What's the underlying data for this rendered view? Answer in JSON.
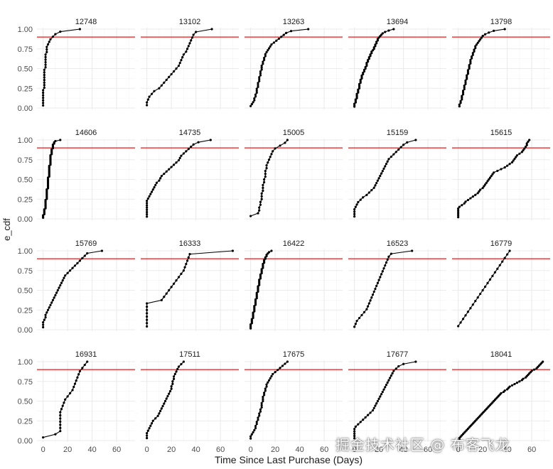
{
  "chart_data": {
    "type": "line",
    "subtype": "faceted-ecdf",
    "xlabel": "Time Since Last Purchase (Days)",
    "ylabel": "e_cdf",
    "xlim": [
      -5,
      75
    ],
    "ylim": [
      0,
      1.0
    ],
    "x_ticks": [
      0,
      20,
      40,
      60
    ],
    "y_ticks": [
      0.0,
      0.25,
      0.5,
      0.75,
      1.0
    ],
    "y_tick_labels": [
      "0.00",
      "0.25",
      "0.50",
      "0.75",
      "1.00"
    ],
    "x_tick_labels": [
      "0",
      "20",
      "40",
      "60"
    ],
    "grid": true,
    "reference_line": {
      "y": 0.9,
      "color": "#e31a1c"
    },
    "line_color": "#000000",
    "panel_background": "#ffffff",
    "grid_color": "#ebebeb",
    "facets": [
      {
        "id": "12748",
        "x": [
          0,
          0,
          0,
          0,
          0,
          0,
          0,
          1,
          1,
          1,
          1,
          1,
          1,
          1,
          1,
          2,
          2,
          2,
          2,
          2,
          2,
          3,
          3,
          3,
          4,
          5,
          6,
          8,
          10,
          14,
          30
        ]
      },
      {
        "id": "13102",
        "x": [
          0,
          0,
          1,
          2,
          4,
          6,
          10,
          12,
          14,
          16,
          18,
          20,
          22,
          24,
          26,
          27,
          28,
          29,
          30,
          32,
          33,
          34,
          35,
          36,
          37,
          38,
          40,
          53
        ]
      },
      {
        "id": "13263",
        "x": [
          0,
          1,
          2,
          3,
          3,
          4,
          4,
          5,
          5,
          5,
          6,
          6,
          6,
          7,
          7,
          7,
          8,
          8,
          8,
          9,
          9,
          9,
          10,
          10,
          11,
          11,
          12,
          12,
          13,
          14,
          15,
          16,
          17,
          19,
          21,
          23,
          25,
          27,
          29,
          33,
          47
        ]
      },
      {
        "id": "13694",
        "x": [
          0,
          0,
          0,
          1,
          1,
          1,
          2,
          2,
          2,
          2,
          3,
          3,
          3,
          4,
          4,
          4,
          4,
          5,
          5,
          5,
          6,
          6,
          6,
          7,
          7,
          8,
          8,
          9,
          9,
          10,
          10,
          10,
          11,
          11,
          12,
          12,
          13,
          13,
          14,
          14,
          15,
          16,
          16,
          17,
          17,
          18,
          18,
          19,
          19,
          20,
          21,
          22,
          23,
          25,
          28,
          32
        ]
      },
      {
        "id": "13798",
        "x": [
          1,
          1,
          2,
          2,
          3,
          3,
          3,
          4,
          4,
          4,
          5,
          5,
          5,
          6,
          6,
          6,
          7,
          7,
          7,
          8,
          8,
          8,
          9,
          9,
          9,
          10,
          10,
          10,
          11,
          11,
          12,
          12,
          13,
          13,
          14,
          14,
          15,
          16,
          17,
          18,
          19,
          20,
          22,
          25,
          29,
          38
        ]
      },
      {
        "id": "14606",
        "x": [
          0,
          0,
          0,
          1,
          1,
          1,
          1,
          1,
          2,
          2,
          2,
          2,
          2,
          2,
          2,
          2,
          3,
          3,
          3,
          3,
          3,
          3,
          3,
          3,
          3,
          4,
          4,
          4,
          4,
          4,
          4,
          4,
          4,
          4,
          4,
          5,
          5,
          5,
          5,
          5,
          5,
          5,
          5,
          5,
          5,
          6,
          6,
          6,
          6,
          6,
          6,
          6,
          6,
          6,
          7,
          7,
          7,
          7,
          7,
          8,
          8,
          8,
          8,
          9,
          9,
          10,
          14
        ]
      },
      {
        "id": "14735",
        "x": [
          0,
          0,
          0,
          0,
          0,
          0,
          0,
          0,
          1,
          2,
          3,
          4,
          5,
          6,
          7,
          8,
          10,
          11,
          12,
          14,
          16,
          18,
          20,
          22,
          24,
          26,
          27,
          28,
          30,
          32,
          34,
          36,
          38,
          42,
          52
        ]
      },
      {
        "id": "15005",
        "x": [
          0,
          6,
          7,
          7,
          8,
          8,
          9,
          9,
          9,
          10,
          10,
          10,
          11,
          11,
          12,
          12,
          12,
          13,
          13,
          14,
          15,
          16,
          17,
          18,
          20,
          24,
          28,
          30
        ]
      },
      {
        "id": "15159",
        "x": [
          0,
          0,
          0,
          0,
          1,
          2,
          3,
          5,
          7,
          10,
          12,
          14,
          16,
          17,
          18,
          19,
          20,
          21,
          22,
          23,
          24,
          25,
          26,
          27,
          28,
          30,
          32,
          34,
          36,
          38,
          40,
          43,
          50
        ]
      },
      {
        "id": "15615",
        "x": [
          0,
          0,
          0,
          0,
          0,
          0,
          1,
          3,
          5,
          6,
          8,
          10,
          12,
          14,
          16,
          17,
          18,
          20,
          21,
          22,
          23,
          24,
          25,
          26,
          27,
          28,
          29,
          32,
          35,
          38,
          40,
          42,
          44,
          45,
          46,
          47,
          48,
          50,
          52,
          53,
          54,
          55,
          56,
          56,
          57,
          58
        ]
      },
      {
        "id": "15769",
        "x": [
          0,
          0,
          0,
          1,
          2,
          2,
          3,
          4,
          5,
          6,
          7,
          8,
          9,
          10,
          11,
          12,
          13,
          14,
          15,
          16,
          17,
          18,
          20,
          22,
          24,
          26,
          28,
          30,
          32,
          34,
          36,
          48
        ]
      },
      {
        "id": "16333",
        "x": [
          0,
          0,
          0,
          0,
          0,
          0,
          0,
          0,
          12,
          14,
          16,
          18,
          20,
          22,
          24,
          26,
          28,
          30,
          31,
          32,
          33,
          34,
          35,
          70
        ]
      },
      {
        "id": "16422",
        "x": [
          0,
          0,
          0,
          0,
          1,
          1,
          1,
          1,
          2,
          2,
          2,
          2,
          2,
          3,
          3,
          3,
          3,
          3,
          4,
          4,
          4,
          4,
          4,
          5,
          5,
          5,
          5,
          5,
          6,
          6,
          6,
          6,
          6,
          7,
          7,
          7,
          7,
          7,
          8,
          8,
          8,
          8,
          9,
          9,
          9,
          9,
          10,
          10,
          10,
          10,
          11,
          11,
          11,
          12,
          12,
          13,
          13,
          14,
          15,
          17
        ]
      },
      {
        "id": "16523",
        "x": [
          0,
          1,
          2,
          4,
          6,
          8,
          10,
          11,
          12,
          13,
          14,
          15,
          16,
          17,
          18,
          19,
          20,
          21,
          22,
          23,
          24,
          25,
          26,
          27,
          28,
          30,
          47
        ]
      },
      {
        "id": "16779",
        "x": [
          0,
          2,
          4,
          6,
          8,
          10,
          12,
          14,
          16,
          18,
          20,
          22,
          24,
          26,
          28,
          30,
          32,
          34,
          36,
          38,
          40,
          42
        ]
      },
      {
        "id": "16931",
        "x": [
          0,
          10,
          14,
          14,
          14,
          14,
          14,
          14,
          14,
          15,
          16,
          17,
          18,
          20,
          22,
          24,
          25,
          26,
          27,
          28,
          29,
          30,
          32,
          34,
          36
        ]
      },
      {
        "id": "17511",
        "x": [
          0,
          0,
          0,
          1,
          2,
          3,
          4,
          5,
          7,
          9,
          10,
          11,
          12,
          13,
          14,
          15,
          16,
          17,
          18,
          19,
          20,
          20,
          21,
          21,
          22,
          22,
          23,
          24,
          25,
          26,
          28,
          30
        ]
      },
      {
        "id": "17675",
        "x": [
          0,
          0,
          1,
          2,
          3,
          4,
          4,
          5,
          5,
          6,
          6,
          7,
          7,
          8,
          8,
          9,
          9,
          9,
          10,
          10,
          10,
          11,
          11,
          12,
          12,
          13,
          13,
          14,
          15,
          16,
          17,
          18,
          20,
          22,
          24,
          26,
          28,
          30
        ]
      },
      {
        "id": "17677",
        "x": [
          0,
          0,
          0,
          0,
          0,
          1,
          3,
          5,
          7,
          9,
          11,
          13,
          15,
          16,
          17,
          18,
          19,
          20,
          21,
          22,
          23,
          24,
          25,
          26,
          27,
          28,
          29,
          30,
          31,
          32,
          34,
          36,
          40,
          50
        ]
      },
      {
        "id": "18041",
        "x": [
          1,
          1,
          2,
          3,
          4,
          5,
          6,
          7,
          8,
          9,
          10,
          11,
          12,
          13,
          14,
          15,
          16,
          17,
          18,
          19,
          20,
          21,
          22,
          23,
          24,
          25,
          26,
          27,
          28,
          29,
          30,
          31,
          32,
          33,
          34,
          35,
          37,
          38,
          40,
          41,
          42,
          44,
          46,
          48,
          50,
          52,
          53,
          55,
          56,
          57,
          58,
          59,
          60,
          62,
          64,
          65,
          66,
          67,
          68,
          69
        ]
      }
    ]
  },
  "watermark": "掘金技术社区 @ 布客飞龙"
}
